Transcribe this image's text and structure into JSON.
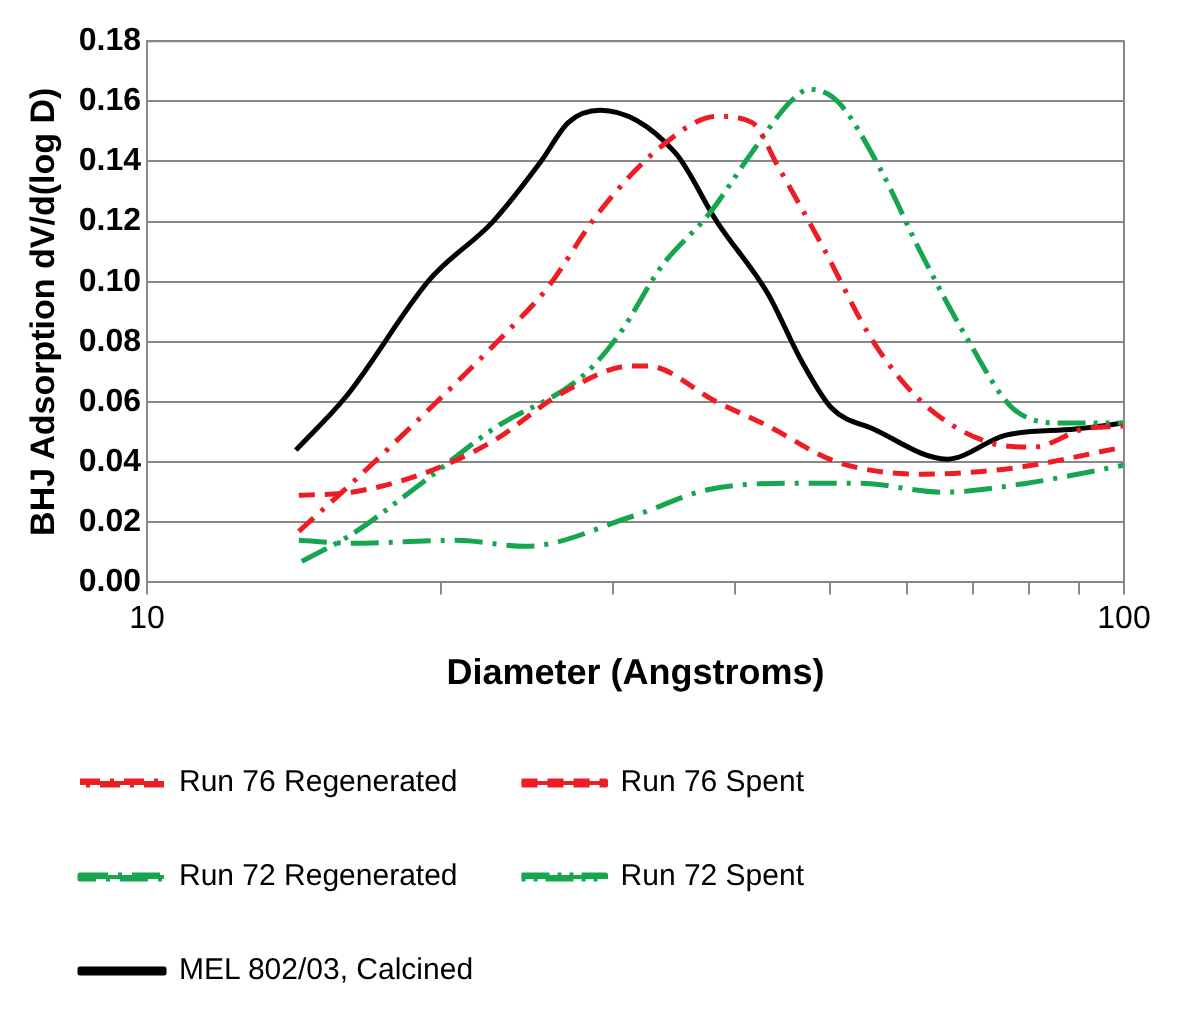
{
  "chart_data": {
    "type": "line",
    "xlabel": "Diameter (Angstroms)",
    "ylabel": "BHJ Adsorption dV/d(log D)",
    "log": "x",
    "grid": "y",
    "legend": "bottom",
    "marker": "none",
    "xlim": [
      10,
      100
    ],
    "xticks": [
      10,
      {
        "value": 20,
        "label": null
      },
      {
        "value": 30,
        "label": null
      },
      {
        "value": 40,
        "label": null
      },
      {
        "value": 50,
        "label": null
      },
      {
        "value": 60,
        "label": null
      },
      {
        "value": 70,
        "label": null
      },
      {
        "value": 80,
        "label": null
      },
      {
        "value": 90,
        "label": null
      },
      100
    ],
    "ylim": [
      0,
      0.18
    ],
    "yticks": [
      {
        "value": 0,
        "label": "0.00"
      },
      {
        "value": 0.02,
        "label": "0.02"
      },
      {
        "value": 0.04,
        "label": "0.04"
      },
      {
        "value": 0.06,
        "label": "0.06"
      },
      {
        "value": 0.08,
        "label": "0.08"
      },
      {
        "value": 0.1,
        "label": "0.10"
      },
      {
        "value": 0.12,
        "label": "0.12"
      },
      {
        "value": 0.14,
        "label": "0.14"
      },
      {
        "value": 0.16,
        "label": "0.16"
      },
      {
        "value": 0.18,
        "label": "0.18"
      }
    ],
    "series": [
      {
        "name": "Run 76 Regenerated",
        "color": "#ee1c24",
        "line_style": "dashed",
        "x": [
          14.3,
          16.2,
          19.5,
          23.3,
          25.7,
          29.0,
          33.6,
          38.3,
          41.6,
          44.3,
          49.1,
          55.4,
          62.1,
          72.0,
          80.8,
          90.9,
          100
        ],
        "values": [
          0.017,
          0.033,
          0.058,
          0.083,
          0.098,
          0.123,
          0.145,
          0.155,
          0.153,
          0.138,
          0.112,
          0.08,
          0.06,
          0.047,
          0.045,
          0.051,
          0.052
        ]
      },
      {
        "name": "Run 76 Spent",
        "color": "#ee1c24",
        "line_style": "dashed",
        "x": [
          14.3,
          16.2,
          19.1,
          22.6,
          26.6,
          31.4,
          32.5,
          38.3,
          43.2,
          50.9,
          62.1,
          76.9,
          100
        ],
        "values": [
          0.029,
          0.03,
          0.036,
          0.047,
          0.063,
          0.072,
          0.072,
          0.06,
          0.052,
          0.04,
          0.036,
          0.038,
          0.045
        ]
      },
      {
        "name": "Run 72 Regenerated",
        "color": "#16a650",
        "line_style": "dashed",
        "x": [
          14.3,
          16.2,
          20.7,
          24.4,
          31.4,
          37.7,
          46.7,
          53.4,
          65.3,
          79.6,
          100
        ],
        "values": [
          0.014,
          0.013,
          0.014,
          0.012,
          0.022,
          0.031,
          0.033,
          0.033,
          0.03,
          0.033,
          0.039
        ]
      },
      {
        "name": "Run 72 Spent",
        "color": "#16a650",
        "line_style": "dashed",
        "x": [
          14.4,
          16.2,
          19.1,
          22.6,
          28.0,
          30.5,
          33.6,
          37.7,
          41.6,
          45.6,
          47.6,
          50.9,
          56.2,
          62.1,
          69.4,
          76.9,
          86.6,
          100
        ],
        "values": [
          0.007,
          0.016,
          0.033,
          0.051,
          0.069,
          0.083,
          0.105,
          0.123,
          0.143,
          0.16,
          0.164,
          0.16,
          0.138,
          0.109,
          0.08,
          0.058,
          0.053,
          0.053
        ]
      },
      {
        "name": "MEL 802/03, Calcined",
        "color": "#000000",
        "line_style": "solid",
        "x": [
          14.2,
          16.0,
          19.5,
          22.6,
          25.3,
          27.0,
          29.1,
          34.7,
          38.3,
          43.2,
          46.7,
          50.2,
          55.4,
          65.9,
          75.7,
          89.2,
          100
        ],
        "values": [
          0.044,
          0.062,
          0.101,
          0.12,
          0.14,
          0.153,
          0.157,
          0.143,
          0.12,
          0.096,
          0.074,
          0.058,
          0.051,
          0.041,
          0.049,
          0.051,
          0.053
        ]
      }
    ]
  }
}
